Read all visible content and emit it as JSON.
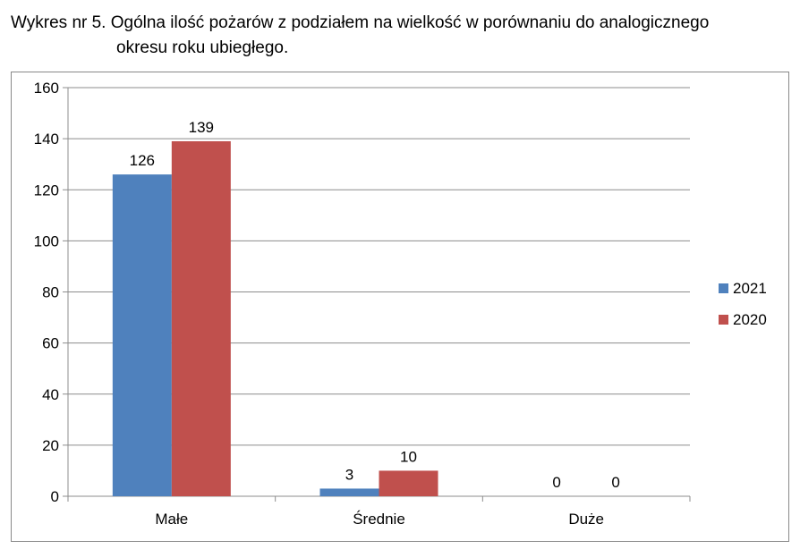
{
  "title_line1": "Wykres nr 5. Ogólna ilość pożarów z podziałem na wielkość w porównaniu do analogicznego",
  "title_line2": "okresu roku ubiegłego.",
  "chart_data": {
    "type": "bar",
    "title": "Wykres nr 5. Ogólna ilość pożarów z podziałem na wielkość w porównaniu do analogicznego okresu roku ubiegłego.",
    "categories": [
      "Małe",
      "Średnie",
      "Duże"
    ],
    "series": [
      {
        "name": "2021",
        "values": [
          126,
          3,
          0
        ],
        "color": "#4f81bd"
      },
      {
        "name": "2020",
        "values": [
          139,
          10,
          0
        ],
        "color": "#c0504d"
      }
    ],
    "yticks": [
      "0",
      "20",
      "40",
      "60",
      "80",
      "100",
      "120",
      "140",
      "160"
    ],
    "ylim": [
      0,
      160
    ],
    "grid": true,
    "legend": "right"
  }
}
